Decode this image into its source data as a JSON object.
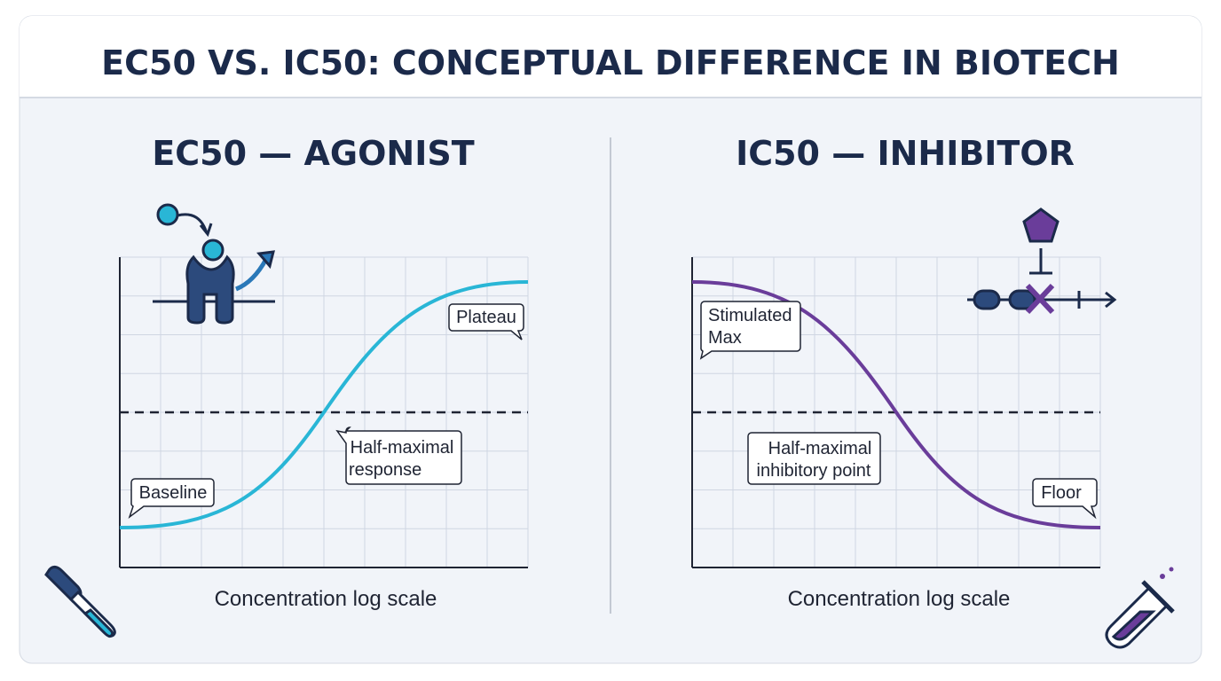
{
  "header": {
    "title": "EC50 VS. IC50: CONCEPTUAL DIFFERENCE IN BIOTECH"
  },
  "panels": [
    {
      "heading": "EC50 — AGONIST",
      "annotations": [
        [
          "Plateau"
        ],
        [
          "Half-maximal",
          "response"
        ],
        [
          "Baseline"
        ]
      ],
      "axis_label": "Concentration log scale"
    },
    {
      "heading": "IC50 — INHIBITOR",
      "annotations": [
        [
          "Stimulated",
          "Max"
        ],
        [
          "Half-maximal",
          "inhibitory point"
        ],
        [
          "Floor"
        ]
      ],
      "axis_label": "Concentration log scale"
    }
  ]
}
